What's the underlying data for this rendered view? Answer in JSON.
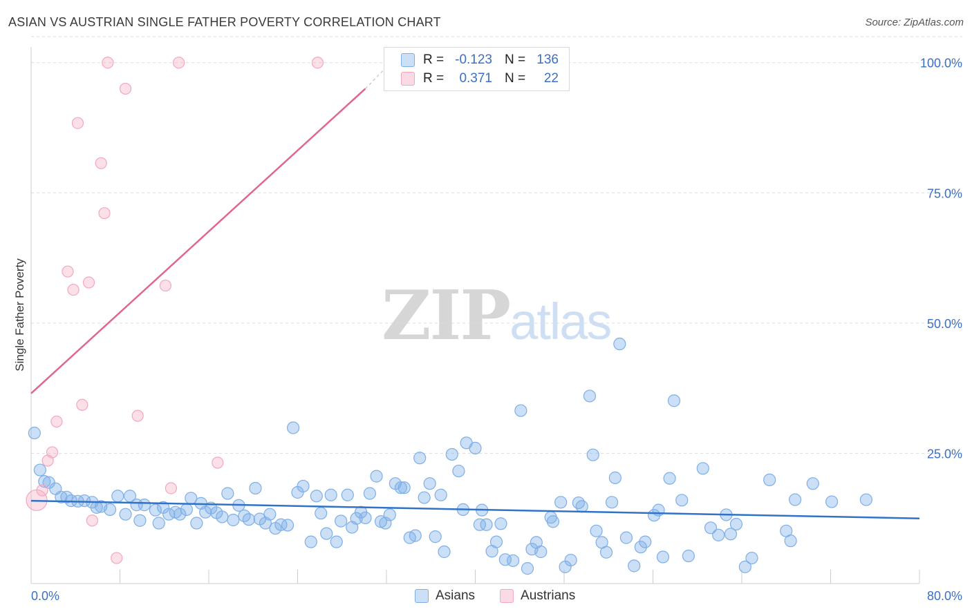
{
  "title": "ASIAN VS AUSTRIAN SINGLE FATHER POVERTY CORRELATION CHART",
  "source": "Source: ZipAtlas.com",
  "watermark": {
    "zip": "ZIP",
    "atlas": "atlas"
  },
  "legend": {
    "rows": [
      {
        "r_label": "R =",
        "r_value": "-0.123",
        "n_label": "N =",
        "n_value": "136",
        "color": "#7eaee8"
      },
      {
        "r_label": "R =",
        "r_value": "0.371",
        "n_label": "N =",
        "n_value": "22",
        "color": "#f3a6bd"
      }
    ]
  },
  "bottom_legend": {
    "asians": "Asians",
    "austrians": "Austrians"
  },
  "chart_data": {
    "type": "scatter",
    "title": "ASIAN VS AUSTRIAN SINGLE FATHER POVERTY CORRELATION CHART",
    "xlabel": "",
    "ylabel": "Single Father Poverty",
    "xlim": [
      0,
      80
    ],
    "ylim": [
      0,
      105
    ],
    "x_tick_labels": [
      "0.0%",
      "80.0%"
    ],
    "y_ticks": [
      25,
      50,
      75,
      100
    ],
    "y_tick_labels": [
      "25.0%",
      "50.0%",
      "75.0%",
      "100.0%"
    ],
    "grid": true,
    "colors": {
      "asians": "#7eaee8",
      "asians_line": "#2f72c8",
      "austrians": "#f3a6bd",
      "austrians_line": "#e06690",
      "tick_text": "#3b6fc4"
    },
    "series": [
      {
        "name": "Asians",
        "trend": {
          "x": [
            0,
            80
          ],
          "y": [
            15.9,
            12.5
          ]
        },
        "points": [
          [
            0.3,
            28.9
          ],
          [
            0.8,
            21.8
          ],
          [
            1.2,
            19.6
          ],
          [
            1.6,
            19.4
          ],
          [
            2.2,
            18.2
          ],
          [
            2.7,
            16.6
          ],
          [
            3.2,
            16.6
          ],
          [
            3.6,
            15.9
          ],
          [
            4.2,
            15.8
          ],
          [
            4.8,
            15.9
          ],
          [
            5.5,
            15.6
          ],
          [
            5.9,
            14.6
          ],
          [
            6.3,
            14.8
          ],
          [
            7.1,
            14.2
          ],
          [
            7.8,
            16.8
          ],
          [
            8.5,
            13.3
          ],
          [
            8.9,
            16.8
          ],
          [
            9.5,
            15.1
          ],
          [
            9.8,
            12.1
          ],
          [
            10.2,
            15.1
          ],
          [
            11.2,
            14.1
          ],
          [
            11.5,
            11.6
          ],
          [
            11.9,
            14.6
          ],
          [
            12.4,
            13.3
          ],
          [
            13.0,
            13.7
          ],
          [
            13.4,
            13.3
          ],
          [
            14.0,
            14.2
          ],
          [
            14.4,
            16.4
          ],
          [
            14.9,
            11.6
          ],
          [
            15.3,
            15.4
          ],
          [
            15.7,
            13.7
          ],
          [
            16.2,
            14.5
          ],
          [
            16.7,
            13.6
          ],
          [
            17.2,
            12.8
          ],
          [
            17.7,
            17.3
          ],
          [
            18.2,
            12.2
          ],
          [
            18.7,
            15.0
          ],
          [
            19.2,
            13.0
          ],
          [
            19.6,
            12.3
          ],
          [
            20.2,
            18.3
          ],
          [
            20.6,
            12.4
          ],
          [
            21.1,
            11.6
          ],
          [
            21.5,
            13.3
          ],
          [
            22.0,
            10.6
          ],
          [
            22.5,
            11.3
          ],
          [
            23.1,
            11.2
          ],
          [
            23.6,
            29.9
          ],
          [
            24.0,
            17.5
          ],
          [
            24.5,
            18.7
          ],
          [
            25.2,
            8.0
          ],
          [
            25.7,
            16.8
          ],
          [
            26.1,
            13.5
          ],
          [
            26.6,
            9.6
          ],
          [
            27.0,
            17.0
          ],
          [
            27.5,
            8.0
          ],
          [
            27.9,
            12.0
          ],
          [
            28.5,
            17.0
          ],
          [
            28.9,
            10.8
          ],
          [
            29.3,
            12.5
          ],
          [
            29.7,
            13.7
          ],
          [
            30.1,
            12.6
          ],
          [
            30.5,
            17.3
          ],
          [
            31.1,
            20.6
          ],
          [
            31.5,
            11.9
          ],
          [
            31.9,
            11.6
          ],
          [
            32.3,
            13.2
          ],
          [
            32.8,
            19.2
          ],
          [
            33.3,
            18.4
          ],
          [
            33.6,
            18.4
          ],
          [
            34.1,
            8.8
          ],
          [
            34.6,
            9.2
          ],
          [
            35.0,
            24.1
          ],
          [
            35.4,
            16.5
          ],
          [
            35.9,
            19.2
          ],
          [
            36.4,
            9.0
          ],
          [
            36.9,
            17.0
          ],
          [
            37.2,
            6.1
          ],
          [
            37.9,
            24.8
          ],
          [
            38.5,
            21.6
          ],
          [
            38.9,
            14.2
          ],
          [
            39.2,
            27.0
          ],
          [
            40.0,
            26.0
          ],
          [
            40.4,
            11.3
          ],
          [
            40.6,
            14.1
          ],
          [
            41.0,
            11.3
          ],
          [
            41.5,
            6.2
          ],
          [
            41.9,
            8.0
          ],
          [
            42.3,
            11.5
          ],
          [
            42.7,
            4.6
          ],
          [
            43.4,
            4.4
          ],
          [
            44.1,
            33.2
          ],
          [
            44.7,
            2.9
          ],
          [
            45.1,
            6.6
          ],
          [
            45.5,
            7.9
          ],
          [
            45.9,
            6.1
          ],
          [
            46.8,
            12.7
          ],
          [
            47.0,
            11.9
          ],
          [
            47.7,
            15.6
          ],
          [
            48.1,
            3.2
          ],
          [
            48.6,
            4.5
          ],
          [
            49.3,
            15.5
          ],
          [
            49.6,
            14.8
          ],
          [
            50.3,
            36.0
          ],
          [
            50.6,
            24.7
          ],
          [
            50.9,
            10.1
          ],
          [
            51.4,
            7.9
          ],
          [
            51.8,
            6.0
          ],
          [
            52.3,
            15.6
          ],
          [
            52.6,
            20.3
          ],
          [
            53.0,
            46.0
          ],
          [
            53.6,
            8.8
          ],
          [
            54.3,
            3.4
          ],
          [
            54.9,
            7.0
          ],
          [
            55.3,
            8.0
          ],
          [
            56.1,
            13.1
          ],
          [
            56.5,
            14.1
          ],
          [
            56.9,
            5.1
          ],
          [
            57.5,
            20.2
          ],
          [
            57.9,
            35.1
          ],
          [
            58.6,
            16.0
          ],
          [
            59.2,
            5.3
          ],
          [
            60.5,
            22.1
          ],
          [
            61.2,
            10.7
          ],
          [
            61.9,
            9.3
          ],
          [
            62.6,
            13.2
          ],
          [
            63.0,
            9.5
          ],
          [
            63.5,
            11.4
          ],
          [
            64.3,
            3.2
          ],
          [
            64.9,
            4.9
          ],
          [
            66.5,
            19.9
          ],
          [
            68.0,
            10.1
          ],
          [
            68.4,
            8.2
          ],
          [
            68.8,
            16.1
          ],
          [
            70.4,
            19.2
          ],
          [
            72.1,
            15.7
          ],
          [
            75.2,
            16.1
          ]
        ]
      },
      {
        "name": "Austrians",
        "trend": {
          "x": [
            0,
            30.1
          ],
          "y": [
            36.5,
            95
          ]
        },
        "trend_extension": {
          "x": [
            30.1,
            31.7
          ],
          "y": [
            95,
            98.5
          ]
        },
        "points": [
          [
            0.5,
            16.0
          ],
          [
            1.0,
            17.9
          ],
          [
            1.5,
            23.6
          ],
          [
            1.9,
            25.2
          ],
          [
            2.3,
            31.1
          ],
          [
            3.3,
            59.9
          ],
          [
            3.8,
            56.4
          ],
          [
            4.2,
            88.4
          ],
          [
            4.6,
            34.3
          ],
          [
            5.2,
            57.8
          ],
          [
            5.5,
            12.1
          ],
          [
            6.3,
            80.7
          ],
          [
            6.6,
            71.1
          ],
          [
            6.9,
            100.0
          ],
          [
            7.7,
            4.9
          ],
          [
            8.5,
            95.0
          ],
          [
            9.6,
            32.2
          ],
          [
            12.1,
            57.2
          ],
          [
            12.6,
            18.3
          ],
          [
            13.3,
            100.0
          ],
          [
            16.8,
            23.2
          ],
          [
            25.8,
            100.0
          ]
        ]
      }
    ]
  }
}
